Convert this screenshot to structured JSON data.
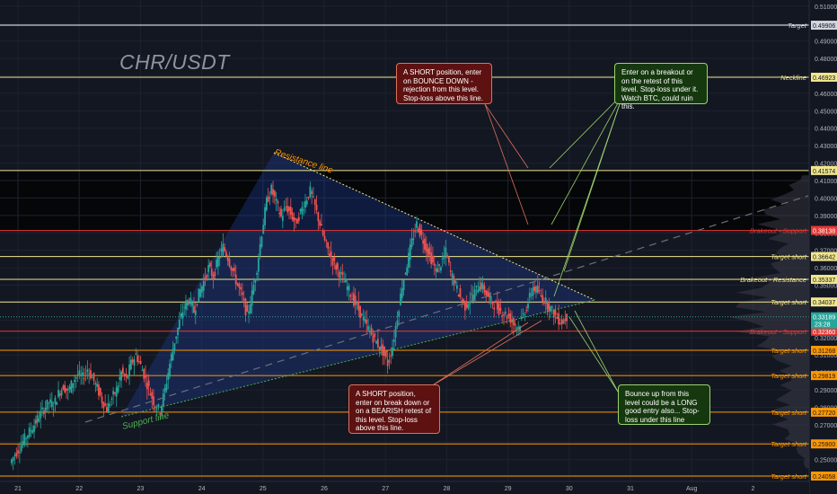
{
  "chart_data": {
    "type": "candlestick",
    "title": "CHR/USDT",
    "x_ticks": [
      "21",
      "22",
      "23",
      "24",
      "25",
      "26",
      "27",
      "28",
      "29",
      "30",
      "31",
      "Aug",
      "2"
    ],
    "y_ticks": [
      "0.51000",
      "0.50000",
      "0.49000",
      "0.48000",
      "0.47000",
      "0.46000",
      "0.45000",
      "0.44000",
      "0.43000",
      "0.42000",
      "0.41000",
      "0.40000",
      "0.39000",
      "0.38000",
      "0.37000",
      "0.36000",
      "0.35000",
      "0.34000",
      "0.33000",
      "0.32000",
      "0.31000",
      "0.30000",
      "0.29000",
      "0.28000",
      "0.27000",
      "0.26000",
      "0.25000",
      "0.24000"
    ],
    "ylim": [
      0.2375,
      0.5135
    ],
    "horizontal_levels": [
      {
        "value": 0.49906,
        "label": "Target",
        "price": "0.49906",
        "color": "#ffffff"
      },
      {
        "value": 0.46923,
        "label": "Neckline",
        "price": "0.46923",
        "color": "#f0e68c"
      },
      {
        "value": 0.41574,
        "label": "",
        "price": "0.41574",
        "color": "#f0e68c"
      },
      {
        "value": 0.38138,
        "label": "Brakeout - Support",
        "price": "0.38138",
        "color": "#e53935"
      },
      {
        "value": 0.36642,
        "label": "Target short",
        "price": "0.36642",
        "color": "#f0e68c"
      },
      {
        "value": 0.35337,
        "label": "Brakeout - Resistance",
        "price": "0.35337",
        "color": "#f0e68c"
      },
      {
        "value": 0.34037,
        "label": "Target short",
        "price": "0.34037",
        "color": "#f0e68c"
      },
      {
        "value": 0.3236,
        "label": "Brakeout - Support",
        "price": "0.32360",
        "color": "#e53935"
      },
      {
        "value": 0.31268,
        "label": "Target short",
        "price": "0.31268",
        "color": "#ff9800"
      },
      {
        "value": 0.29819,
        "label": "Target short",
        "price": "0.29819",
        "color": "#ff9800"
      },
      {
        "value": 0.2772,
        "label": "Target short",
        "price": "0.27720",
        "color": "#ff9800"
      },
      {
        "value": 0.259,
        "label": "Target short",
        "price": "0.25900",
        "color": "#ff9800"
      },
      {
        "value": 0.24058,
        "label": "Target short",
        "price": "0.24058",
        "color": "#ff9800"
      }
    ],
    "current_price": {
      "price": "0.33189",
      "countdown": "23:28",
      "color": "#26a69a"
    },
    "trendlines": {
      "resistance_label": "Resistance line",
      "support_label": "Support line"
    },
    "price_path": [
      0.248,
      0.253,
      0.257,
      0.262,
      0.266,
      0.27,
      0.275,
      0.279,
      0.283,
      0.281,
      0.288,
      0.292,
      0.289,
      0.295,
      0.299,
      0.297,
      0.302,
      0.297,
      0.291,
      0.284,
      0.279,
      0.285,
      0.29,
      0.3,
      0.296,
      0.305,
      0.31,
      0.304,
      0.296,
      0.288,
      0.281,
      0.278,
      0.29,
      0.305,
      0.318,
      0.329,
      0.338,
      0.342,
      0.335,
      0.345,
      0.352,
      0.36,
      0.355,
      0.365,
      0.372,
      0.366,
      0.358,
      0.35,
      0.343,
      0.332,
      0.345,
      0.36,
      0.38,
      0.398,
      0.405,
      0.397,
      0.389,
      0.395,
      0.391,
      0.385,
      0.392,
      0.398,
      0.404,
      0.395,
      0.385,
      0.375,
      0.368,
      0.362,
      0.357,
      0.352,
      0.347,
      0.341,
      0.336,
      0.33,
      0.325,
      0.32,
      0.316,
      0.312,
      0.305,
      0.315,
      0.332,
      0.35,
      0.362,
      0.375,
      0.385,
      0.378,
      0.371,
      0.365,
      0.358,
      0.362,
      0.369,
      0.357,
      0.35,
      0.343,
      0.338,
      0.342,
      0.346,
      0.351,
      0.347,
      0.342,
      0.339,
      0.336,
      0.334,
      0.332,
      0.328,
      0.326,
      0.333,
      0.34,
      0.349,
      0.346,
      0.343,
      0.339,
      0.335,
      0.331,
      0.329,
      0.332
    ],
    "annotations": [
      "A SHORT position, enter on BOUNCE DOWN - rejection from this level. Stop-loss above this line.",
      "Enter on a breakout or on the retest of this level. Stop-loss under it. Watch BTC, could ruin this.",
      "A SHORT position, enter on break down or on a BEARISH retest of this level. Stop-loss above this line.",
      "Bounce up from this level could be a LONG good entry also... Stop-loss under this line"
    ],
    "colors": {
      "up": "#26a69a",
      "down": "#ef5350",
      "background": "#131722",
      "triangle_fill": "#1c3a8a"
    },
    "grid": true
  }
}
